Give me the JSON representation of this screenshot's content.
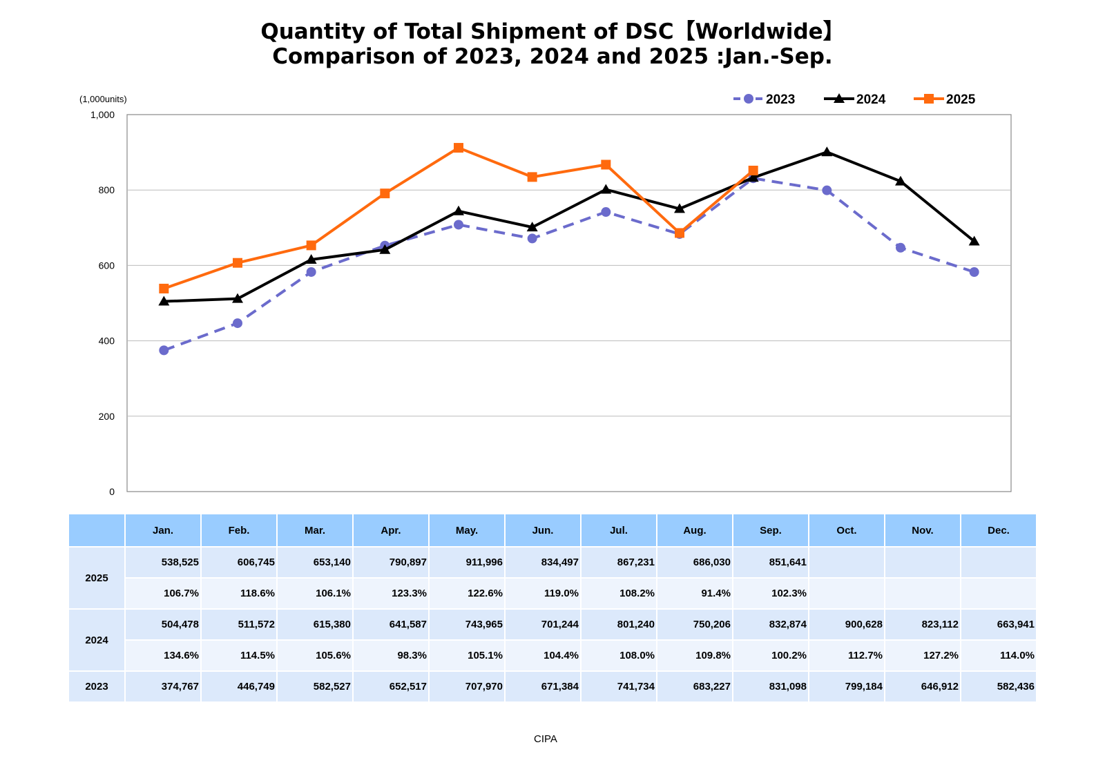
{
  "title_line1": "Quantity of Total Shipment of DSC【Worldwide】",
  "title_line2": "Comparison of 2023, 2024 and 2025 :Jan.-Sep.",
  "source": "CIPA",
  "chart_data": {
    "type": "line",
    "title": "Quantity of Total Shipment of DSC【Worldwide】 Comparison of 2023, 2024 and 2025 :Jan.-Sep.",
    "ylabel": "(1,000units)",
    "ylim": [
      0,
      1000
    ],
    "yticks": [
      "0",
      "200",
      "400",
      "600",
      "800",
      "1,000"
    ],
    "ytick_values": [
      0,
      200,
      400,
      600,
      800,
      1000
    ],
    "grid": true,
    "legend_position": "top-right",
    "categories": [
      "Jan.",
      "Feb.",
      "Mar.",
      "Apr.",
      "May.",
      "Jun.",
      "Jul.",
      "Aug.",
      "Sep.",
      "Oct.",
      "Nov.",
      "Dec."
    ],
    "series": [
      {
        "name": "2023",
        "color": "#6b6bcc",
        "marker": "circle",
        "dash": true,
        "values": [
          374.767,
          446.749,
          582.527,
          652.517,
          707.97,
          671.384,
          741.734,
          683.227,
          831.098,
          799.184,
          646.912,
          582.436
        ]
      },
      {
        "name": "2024",
        "color": "#000000",
        "marker": "triangle",
        "dash": false,
        "values": [
          504.478,
          511.572,
          615.38,
          641.587,
          743.965,
          701.244,
          801.24,
          750.206,
          832.874,
          900.628,
          823.112,
          663.941
        ]
      },
      {
        "name": "2025",
        "color": "#ff6a0e",
        "marker": "square",
        "dash": false,
        "values": [
          538.525,
          606.745,
          653.14,
          790.897,
          911.996,
          834.497,
          867.231,
          686.03,
          851.641,
          null,
          null,
          null
        ]
      }
    ]
  },
  "table": {
    "header": [
      "Jan.",
      "Feb.",
      "Mar.",
      "Apr.",
      "May.",
      "Jun.",
      "Jul.",
      "Aug.",
      "Sep.",
      "Oct.",
      "Nov.",
      "Dec."
    ],
    "rows": [
      {
        "year": "2025",
        "units": [
          "538,525",
          "606,745",
          "653,140",
          "790,897",
          "911,996",
          "834,497",
          "867,231",
          "686,030",
          "851,641",
          "",
          "",
          ""
        ],
        "ratio": [
          "106.7%",
          "118.6%",
          "106.1%",
          "123.3%",
          "122.6%",
          "119.0%",
          "108.2%",
          "91.4%",
          "102.3%",
          "",
          "",
          ""
        ]
      },
      {
        "year": "2024",
        "units": [
          "504,478",
          "511,572",
          "615,380",
          "641,587",
          "743,965",
          "701,244",
          "801,240",
          "750,206",
          "832,874",
          "900,628",
          "823,112",
          "663,941"
        ],
        "ratio": [
          "134.6%",
          "114.5%",
          "105.6%",
          "98.3%",
          "105.1%",
          "104.4%",
          "108.0%",
          "109.8%",
          "100.2%",
          "112.7%",
          "127.2%",
          "114.0%"
        ]
      },
      {
        "year": "2023",
        "units": [
          "374,767",
          "446,749",
          "582,527",
          "652,517",
          "707,970",
          "671,384",
          "741,734",
          "683,227",
          "831,098",
          "799,184",
          "646,912",
          "582,436"
        ]
      }
    ]
  }
}
